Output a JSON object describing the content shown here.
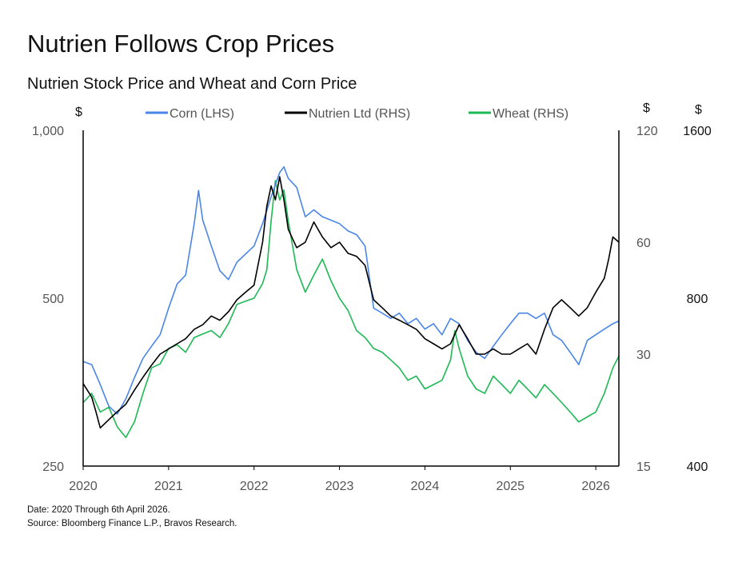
{
  "title": "Nutrien Follows Crop Prices",
  "subtitle": "Nutrien Stock Price and Wheat and Corn Price",
  "footer": {
    "line1": "Date: 2020 Through 6th April 2026.",
    "line2": "Source: Bloomberg Finance L.P., Bravos Research."
  },
  "units": {
    "lhs": "$",
    "rhs1": "$",
    "rhs2": "$"
  },
  "colors": {
    "corn": "#4a86e8",
    "nutrien": "#000000",
    "wheat": "#1db954"
  },
  "chart_data": {
    "type": "line",
    "x_axis": {
      "ticks": [
        "2020",
        "2021",
        "2022",
        "2023",
        "2024",
        "2025",
        "2026"
      ],
      "range": [
        2020.0,
        2026.27
      ]
    },
    "left_axis": {
      "unit": "$",
      "scale": "log",
      "range": [
        250,
        1000
      ],
      "ticks": [
        "1,000",
        "500",
        "250"
      ]
    },
    "right_axis_1": {
      "unit": "$",
      "scale": "log",
      "range": [
        15,
        120
      ],
      "ticks": [
        "120",
        "60",
        "30",
        "15"
      ]
    },
    "right_axis_2": {
      "unit": "$",
      "scale": "log",
      "range": [
        400,
        1600
      ],
      "ticks": [
        "1600",
        "800",
        "400"
      ]
    },
    "legend": {
      "position": "top"
    },
    "series": [
      {
        "name": "Corn (LHS)",
        "axis": "left",
        "color": "#4a86e8",
        "x": [
          2020.0,
          2020.1,
          2020.2,
          2020.3,
          2020.4,
          2020.5,
          2020.6,
          2020.7,
          2020.8,
          2020.9,
          2021.0,
          2021.1,
          2021.2,
          2021.3,
          2021.35,
          2021.4,
          2021.5,
          2021.6,
          2021.7,
          2021.8,
          2021.9,
          2022.0,
          2022.1,
          2022.2,
          2022.3,
          2022.35,
          2022.4,
          2022.5,
          2022.6,
          2022.7,
          2022.8,
          2022.9,
          2023.0,
          2023.1,
          2023.2,
          2023.3,
          2023.4,
          2023.5,
          2023.6,
          2023.7,
          2023.8,
          2023.9,
          2024.0,
          2024.1,
          2024.2,
          2024.3,
          2024.4,
          2024.5,
          2024.6,
          2024.7,
          2024.8,
          2024.9,
          2025.0,
          2025.1,
          2025.2,
          2025.3,
          2025.4,
          2025.5,
          2025.6,
          2025.7,
          2025.8,
          2025.9,
          2026.0,
          2026.1,
          2026.2,
          2026.27
        ],
        "y": [
          385,
          380,
          350,
          320,
          310,
          330,
          360,
          390,
          410,
          430,
          480,
          530,
          550,
          680,
          780,
          690,
          620,
          560,
          540,
          580,
          600,
          620,
          680,
          760,
          840,
          860,
          820,
          790,
          700,
          720,
          700,
          690,
          680,
          660,
          650,
          620,
          480,
          470,
          460,
          470,
          450,
          460,
          440,
          450,
          430,
          460,
          450,
          420,
          400,
          390,
          410,
          430,
          450,
          470,
          470,
          460,
          470,
          430,
          420,
          400,
          380,
          420,
          430,
          440,
          450,
          455
        ]
      },
      {
        "name": "Nutrien Ltd (RHS)",
        "axis": "right_1",
        "color": "#000000",
        "x": [
          2020.0,
          2020.1,
          2020.15,
          2020.2,
          2020.3,
          2020.4,
          2020.5,
          2020.6,
          2020.7,
          2020.8,
          2020.9,
          2021.0,
          2021.1,
          2021.2,
          2021.3,
          2021.4,
          2021.5,
          2021.6,
          2021.7,
          2021.8,
          2021.9,
          2022.0,
          2022.1,
          2022.15,
          2022.2,
          2022.25,
          2022.3,
          2022.35,
          2022.4,
          2022.5,
          2022.6,
          2022.7,
          2022.8,
          2022.9,
          2023.0,
          2023.1,
          2023.2,
          2023.3,
          2023.4,
          2023.5,
          2023.6,
          2023.7,
          2023.8,
          2023.9,
          2024.0,
          2024.1,
          2024.2,
          2024.3,
          2024.4,
          2024.5,
          2024.6,
          2024.7,
          2024.8,
          2024.9,
          2025.0,
          2025.1,
          2025.2,
          2025.3,
          2025.4,
          2025.5,
          2025.6,
          2025.7,
          2025.8,
          2025.9,
          2026.0,
          2026.1,
          2026.15,
          2026.2,
          2026.27
        ],
        "y": [
          25,
          23,
          21,
          19,
          20,
          21,
          22,
          24,
          26,
          28,
          30,
          31,
          32,
          33,
          35,
          36,
          38,
          37,
          39,
          42,
          44,
          46,
          60,
          75,
          85,
          78,
          90,
          78,
          65,
          58,
          60,
          68,
          62,
          58,
          60,
          56,
          55,
          52,
          42,
          40,
          38,
          37,
          36,
          35,
          33,
          32,
          31,
          32,
          36,
          33,
          30,
          30,
          31,
          30,
          30,
          31,
          32,
          30,
          35,
          40,
          42,
          40,
          38,
          40,
          44,
          48,
          54,
          62,
          60
        ]
      },
      {
        "name": "Wheat (RHS)",
        "axis": "right_2",
        "color": "#1db954",
        "x": [
          2020.0,
          2020.1,
          2020.2,
          2020.3,
          2020.4,
          2020.5,
          2020.6,
          2020.7,
          2020.8,
          2020.9,
          2021.0,
          2021.1,
          2021.2,
          2021.3,
          2021.4,
          2021.5,
          2021.6,
          2021.7,
          2021.8,
          2021.9,
          2022.0,
          2022.1,
          2022.15,
          2022.2,
          2022.25,
          2022.3,
          2022.35,
          2022.4,
          2022.5,
          2022.6,
          2022.7,
          2022.8,
          2022.9,
          2023.0,
          2023.1,
          2023.2,
          2023.3,
          2023.4,
          2023.5,
          2023.6,
          2023.7,
          2023.8,
          2023.9,
          2024.0,
          2024.1,
          2024.2,
          2024.3,
          2024.35,
          2024.4,
          2024.5,
          2024.6,
          2024.7,
          2024.8,
          2024.9,
          2025.0,
          2025.1,
          2025.2,
          2025.3,
          2025.4,
          2025.5,
          2025.6,
          2025.7,
          2025.8,
          2025.9,
          2026.0,
          2026.1,
          2026.2,
          2026.27
        ],
        "y": [
          520,
          540,
          500,
          510,
          470,
          450,
          480,
          540,
          600,
          610,
          650,
          660,
          640,
          680,
          690,
          700,
          680,
          720,
          780,
          790,
          800,
          850,
          900,
          1100,
          1300,
          1200,
          1250,
          1100,
          900,
          820,
          880,
          940,
          860,
          800,
          760,
          700,
          680,
          650,
          640,
          620,
          600,
          570,
          580,
          550,
          560,
          570,
          620,
          700,
          650,
          580,
          550,
          540,
          580,
          560,
          540,
          570,
          550,
          530,
          560,
          540,
          520,
          500,
          480,
          490,
          500,
          540,
          600,
          630
        ]
      }
    ]
  }
}
